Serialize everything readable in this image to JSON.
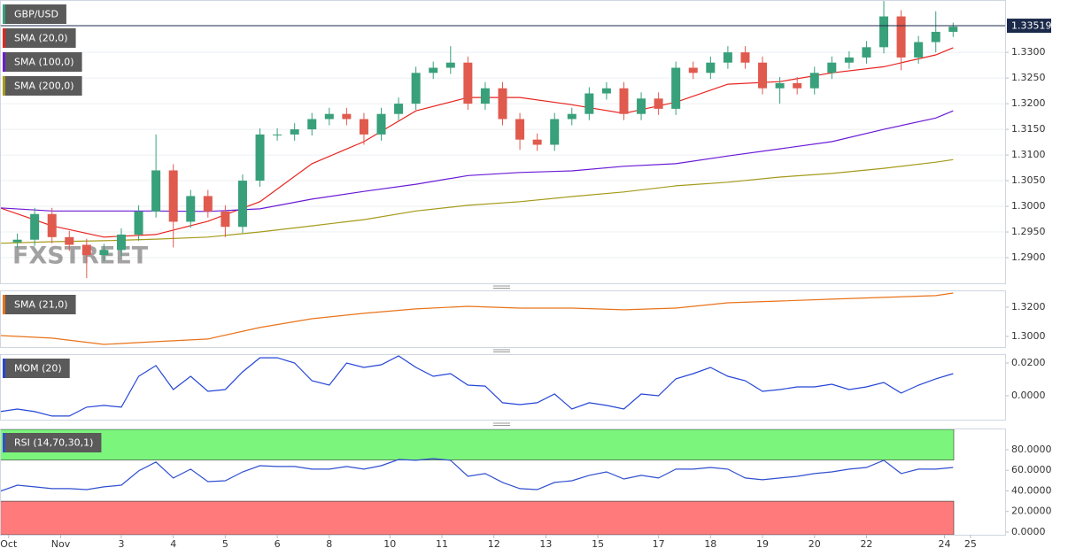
{
  "chart_data": [
    {
      "type": "candlestick",
      "name": "GBP/USD",
      "color_up": "#38a07a",
      "color_down": "#e05a4e",
      "xlim": [
        0,
        116
      ],
      "x": [
        2,
        4,
        6,
        8,
        10,
        12,
        14,
        16,
        18,
        20,
        22,
        24,
        26,
        28,
        30,
        32,
        34,
        36,
        38,
        40,
        42,
        44,
        46,
        48,
        50,
        52,
        54,
        56,
        58,
        60,
        62,
        64,
        66,
        68,
        70,
        72,
        74,
        76,
        78,
        80,
        82,
        84,
        86,
        88,
        90,
        92,
        94,
        96,
        98,
        100,
        102,
        104,
        106,
        108,
        110
      ],
      "open": [
        1.293,
        1.2935,
        1.2985,
        1.294,
        1.2925,
        1.2905,
        1.2915,
        1.2945,
        1.299,
        1.307,
        1.297,
        1.302,
        1.299,
        1.296,
        1.305,
        1.314,
        1.314,
        1.315,
        1.317,
        1.318,
        1.317,
        1.314,
        1.318,
        1.32,
        1.326,
        1.327,
        1.328,
        1.32,
        1.323,
        1.317,
        1.313,
        1.312,
        1.317,
        1.318,
        1.322,
        1.323,
        1.318,
        1.321,
        1.319,
        1.327,
        1.326,
        1.328,
        1.33,
        1.328,
        1.323,
        1.324,
        1.323,
        1.326,
        1.328,
        1.329,
        1.331,
        1.337,
        1.329,
        1.332,
        1.334
      ],
      "high": [
        1.2947,
        1.2997,
        1.2997,
        1.2952,
        1.2937,
        1.2927,
        1.2957,
        1.3002,
        1.314,
        1.3082,
        1.3032,
        1.3032,
        1.3002,
        1.3062,
        1.3152,
        1.3152,
        1.3162,
        1.3182,
        1.3192,
        1.3192,
        1.3182,
        1.3192,
        1.3212,
        1.3272,
        1.3282,
        1.3312,
        1.3292,
        1.3242,
        1.3242,
        1.3182,
        1.3142,
        1.3182,
        1.3192,
        1.3232,
        1.3242,
        1.3242,
        1.3222,
        1.3222,
        1.3282,
        1.3282,
        1.3292,
        1.3312,
        1.3312,
        1.3292,
        1.3252,
        1.3252,
        1.3272,
        1.3292,
        1.3302,
        1.3322,
        1.34,
        1.3382,
        1.3332,
        1.338,
        1.3358
      ],
      "low": [
        1.2918,
        1.2923,
        1.2928,
        1.2913,
        1.286,
        1.2893,
        1.2903,
        1.2933,
        1.2978,
        1.292,
        1.2958,
        1.2978,
        1.294,
        1.2948,
        1.3038,
        1.3128,
        1.3128,
        1.3138,
        1.3158,
        1.3158,
        1.312,
        1.3128,
        1.3168,
        1.3188,
        1.3248,
        1.3258,
        1.3188,
        1.3188,
        1.3158,
        1.311,
        1.3108,
        1.3108,
        1.3158,
        1.3168,
        1.3208,
        1.3168,
        1.3168,
        1.3178,
        1.3178,
        1.3248,
        1.3248,
        1.3268,
        1.3268,
        1.3218,
        1.32,
        1.3218,
        1.3218,
        1.3248,
        1.3268,
        1.3278,
        1.3298,
        1.3265,
        1.3278,
        1.33,
        1.333
      ],
      "close": [
        1.2935,
        1.2985,
        1.294,
        1.2925,
        1.2905,
        1.2915,
        1.2945,
        1.299,
        1.307,
        1.297,
        1.302,
        1.299,
        1.296,
        1.305,
        1.314,
        1.314,
        1.315,
        1.317,
        1.318,
        1.317,
        1.314,
        1.318,
        1.32,
        1.326,
        1.327,
        1.328,
        1.32,
        1.323,
        1.317,
        1.313,
        1.312,
        1.317,
        1.318,
        1.322,
        1.323,
        1.318,
        1.321,
        1.319,
        1.327,
        1.326,
        1.328,
        1.33,
        1.328,
        1.323,
        1.324,
        1.323,
        1.326,
        1.328,
        1.329,
        1.331,
        1.337,
        1.329,
        1.332,
        1.334,
        1.335
      ],
      "last_price": 1.33519,
      "last_price_color": "#1b2a4a",
      "overlay_x": [
        0,
        6,
        12,
        18,
        24,
        30,
        36,
        42,
        48,
        54,
        60,
        66,
        72,
        78,
        84,
        90,
        96,
        102,
        108,
        110
      ],
      "overlays": [
        {
          "name": "SMA (20,0)",
          "color": "#e8231e",
          "values": [
            1.2997,
            1.2962,
            1.294,
            1.2945,
            1.2971,
            1.3009,
            1.3083,
            1.3126,
            1.3186,
            1.3212,
            1.3212,
            1.3198,
            1.3181,
            1.3203,
            1.3238,
            1.3243,
            1.326,
            1.3272,
            1.3295,
            1.3309
          ]
        },
        {
          "name": "SMA (100,0)",
          "color": "#6a1bd6",
          "values": [
            1.2997,
            1.2991,
            1.2991,
            1.2991,
            1.299,
            1.2995,
            1.3014,
            1.3029,
            1.3043,
            1.306,
            1.3066,
            1.3069,
            1.3078,
            1.3083,
            1.3098,
            1.3112,
            1.3126,
            1.315,
            1.3172,
            1.3186
          ]
        },
        {
          "name": "SMA (200,0)",
          "color": "#a59a1a",
          "values": [
            1.2928,
            1.2931,
            1.2933,
            1.2936,
            1.294,
            1.295,
            1.2962,
            1.2974,
            1.2991,
            1.3002,
            1.3009,
            1.3019,
            1.3028,
            1.304,
            1.3047,
            1.3057,
            1.3064,
            1.3074,
            1.3086,
            1.3091
          ]
        }
      ],
      "ylim": [
        1.285,
        1.3402
      ],
      "yticks": [
        {
          "value": 1.29,
          "label": "1.2900"
        },
        {
          "value": 1.295,
          "label": "1.2950"
        },
        {
          "value": 1.3,
          "label": "1.3000"
        },
        {
          "value": 1.305,
          "label": "1.3050"
        },
        {
          "value": 1.31,
          "label": "1.3100"
        },
        {
          "value": 1.315,
          "label": "1.3150"
        },
        {
          "value": 1.32,
          "label": "1.3200"
        },
        {
          "value": 1.325,
          "label": "1.3250"
        },
        {
          "value": 1.33,
          "label": "1.3300"
        }
      ],
      "grid": true,
      "watermark": "FXSTREET"
    },
    {
      "type": "line",
      "xlim": [
        0,
        116
      ],
      "x": [
        0,
        6,
        12,
        18,
        24,
        30,
        36,
        42,
        48,
        54,
        60,
        66,
        72,
        78,
        84,
        90,
        96,
        102,
        108,
        110
      ],
      "series": [
        {
          "name": "SMA (21,0)",
          "color": "#e8731a",
          "values": [
            1.3006,
            1.2988,
            1.2945,
            1.2964,
            1.2982,
            1.3061,
            1.3121,
            1.3158,
            1.3188,
            1.3206,
            1.3194,
            1.3194,
            1.3182,
            1.3194,
            1.323,
            1.3242,
            1.3255,
            1.3267,
            1.3279,
            1.3297
          ]
        }
      ],
      "ylim": [
        1.2927,
        1.3315
      ],
      "yticks": [
        {
          "value": 1.3,
          "label": "1.3000"
        },
        {
          "value": 1.32,
          "label": "1.3200"
        }
      ]
    },
    {
      "type": "line",
      "xlim": [
        0,
        116
      ],
      "x": [
        0,
        2,
        4,
        6,
        8,
        10,
        12,
        14,
        16,
        18,
        20,
        22,
        24,
        26,
        28,
        30,
        32,
        34,
        36,
        38,
        40,
        42,
        44,
        46,
        48,
        50,
        52,
        54,
        56,
        58,
        60,
        62,
        64,
        66,
        68,
        70,
        72,
        74,
        76,
        78,
        80,
        82,
        84,
        86,
        88,
        90,
        92,
        94,
        96,
        98,
        100,
        102,
        104,
        106,
        108,
        110
      ],
      "series": [
        {
          "name": "MOM (20)",
          "color": "#2545d6",
          "values": [
            -0.0097,
            -0.0081,
            -0.0097,
            -0.0124,
            -0.0124,
            -0.007,
            -0.0059,
            -0.007,
            0.0119,
            0.0184,
            0.0038,
            0.0119,
            0.0027,
            0.0038,
            0.0146,
            0.0232,
            0.0232,
            0.02,
            0.0092,
            0.0065,
            0.02,
            0.0173,
            0.0189,
            0.0243,
            0.0173,
            0.0119,
            0.0135,
            0.0065,
            0.0059,
            -0.0043,
            -0.0054,
            -0.0043,
            0.0011,
            -0.0081,
            -0.0043,
            -0.0059,
            -0.0081,
            0.0011,
            0.0,
            0.0103,
            0.0135,
            0.0173,
            0.0119,
            0.0092,
            0.0027,
            0.0038,
            0.0054,
            0.0054,
            0.007,
            0.0038,
            0.0054,
            0.0081,
            0.0016,
            0.0065,
            0.0103,
            0.0135
          ]
        }
      ],
      "ylim": [
        -0.0146,
        0.0254
      ],
      "yticks": [
        {
          "value": 0,
          "label": "0.0000"
        },
        {
          "value": 0.02,
          "label": "0.0200"
        }
      ]
    },
    {
      "type": "line",
      "xlim": [
        0,
        116
      ],
      "x": [
        0,
        2,
        4,
        6,
        8,
        10,
        12,
        14,
        16,
        18,
        20,
        22,
        24,
        26,
        28,
        30,
        32,
        34,
        36,
        38,
        40,
        42,
        44,
        46,
        48,
        50,
        52,
        54,
        56,
        58,
        60,
        62,
        64,
        66,
        68,
        70,
        72,
        74,
        76,
        78,
        80,
        82,
        84,
        86,
        88,
        90,
        92,
        94,
        96,
        98,
        100,
        102,
        104,
        106,
        108,
        110
      ],
      "series": [
        {
          "name": "RSI (14,70,30,1)",
          "color": "#2f4fcf",
          "values": [
            39.6,
            45.6,
            43.9,
            42.2,
            42.2,
            41.3,
            43.9,
            45.6,
            59.4,
            68.0,
            52.5,
            61.1,
            49.0,
            49.9,
            58.5,
            64.5,
            63.7,
            63.7,
            61.1,
            61.1,
            63.7,
            61.1,
            64.5,
            70.5,
            69.7,
            71.4,
            69.7,
            54.2,
            56.8,
            48.2,
            42.2,
            41.3,
            48.2,
            49.9,
            55.1,
            58.5,
            51.6,
            55.1,
            52.5,
            61.1,
            61.1,
            62.8,
            61.1,
            52.5,
            50.8,
            52.5,
            54.2,
            56.8,
            58.5,
            61.1,
            62.8,
            69.7,
            56.8,
            61.1,
            61.1,
            62.8
          ]
        }
      ],
      "overbought": 70,
      "oversold": 30,
      "overbought_color": "#7cf57c",
      "oversold_color": "#ff7b7b",
      "ylim": [
        -2.6,
        100.6
      ],
      "yticks": [
        {
          "value": 0,
          "label": "0.0000"
        },
        {
          "value": 20,
          "label": "20.0000"
        },
        {
          "value": 40,
          "label": "40.0000"
        },
        {
          "value": 60,
          "label": "60.0000"
        },
        {
          "value": 80,
          "label": "80.0000"
        }
      ],
      "xticks": [
        {
          "value": 1,
          "label": "Oct"
        },
        {
          "value": 7,
          "label": "Nov"
        },
        {
          "value": 14,
          "label": "3"
        },
        {
          "value": 20,
          "label": "4"
        },
        {
          "value": 26,
          "label": "5"
        },
        {
          "value": 32,
          "label": "6"
        },
        {
          "value": 38,
          "label": "8"
        },
        {
          "value": 45,
          "label": "10"
        },
        {
          "value": 51,
          "label": "11"
        },
        {
          "value": 57,
          "label": "12"
        },
        {
          "value": 63,
          "label": "13"
        },
        {
          "value": 69,
          "label": "15"
        },
        {
          "value": 76,
          "label": "17"
        },
        {
          "value": 82,
          "label": "18"
        },
        {
          "value": 88,
          "label": "19"
        },
        {
          "value": 94,
          "label": "20"
        },
        {
          "value": 100,
          "label": "22"
        },
        {
          "value": 109,
          "label": "24"
        },
        {
          "value": 112,
          "label": "25"
        }
      ]
    }
  ]
}
